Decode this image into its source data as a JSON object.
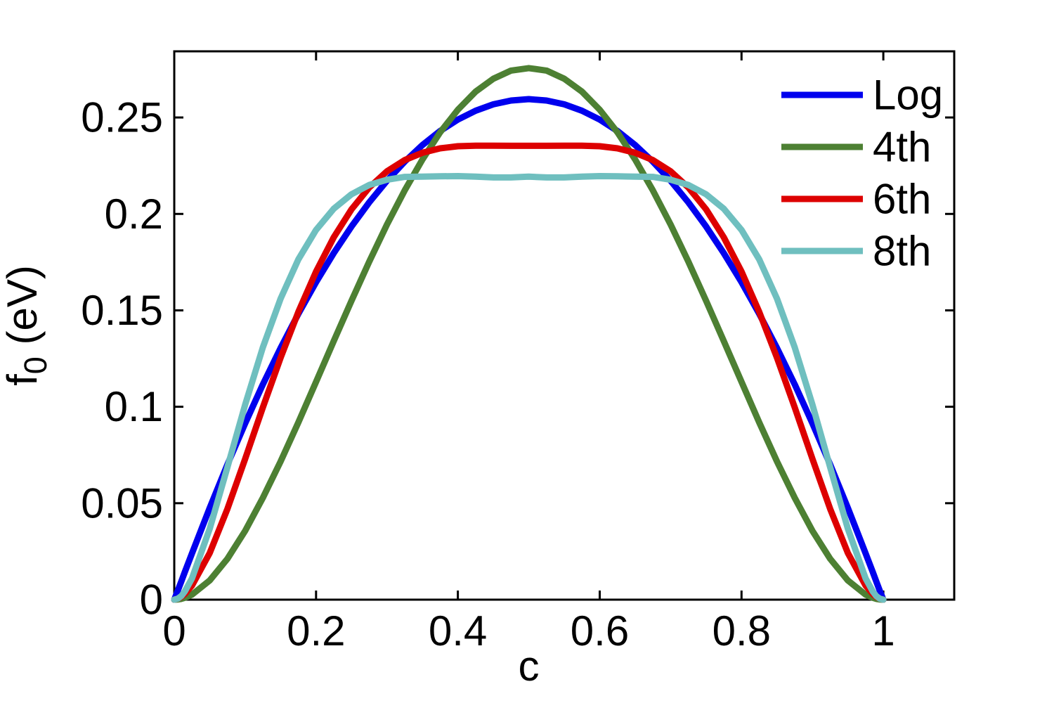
{
  "figure": {
    "background": "#ffffff",
    "axis_color": "#000000"
  },
  "chart_data": {
    "type": "line",
    "title": "",
    "xlabel": "c",
    "ylabel": {
      "main": "f",
      "sub": "0",
      "rest": " (eV)"
    },
    "xlim": [
      0,
      1.1
    ],
    "ylim": [
      0,
      0.2843
    ],
    "grid": false,
    "legend": {
      "position": "upper-right",
      "box": false
    },
    "xticks": [
      0,
      0.2,
      0.4,
      0.6,
      0.8,
      1
    ],
    "xtick_labels": [
      "0",
      "0.2",
      "0.4",
      "0.6",
      "0.8",
      "1"
    ],
    "yticks": [
      0,
      0.05,
      0.1,
      0.15,
      0.2,
      0.25
    ],
    "ytick_labels": [
      "0",
      "0.05",
      "0.1",
      "0.15",
      "0.2",
      "0.25"
    ],
    "x": [
      0,
      0.005,
      0.01,
      0.015,
      0.025,
      0.05,
      0.075,
      0.1,
      0.125,
      0.15,
      0.175,
      0.2,
      0.225,
      0.25,
      0.275,
      0.3,
      0.325,
      0.35,
      0.375,
      0.4,
      0.425,
      0.45,
      0.475,
      0.5,
      0.525,
      0.55,
      0.575,
      0.6,
      0.625,
      0.65,
      0.675,
      0.7,
      0.725,
      0.75,
      0.775,
      0.8,
      0.825,
      0.85,
      0.875,
      0.9,
      0.925,
      0.95,
      0.975,
      0.985,
      0.99,
      0.995,
      1
    ],
    "series": [
      {
        "name": "Log",
        "color": "#0000EE",
        "peak": 0.2595,
        "values": [
          0,
          0.0047,
          0.0095,
          0.0144,
          0.024,
          0.0476,
          0.0701,
          0.0914,
          0.1116,
          0.1305,
          0.1482,
          0.1646,
          0.1797,
          0.1935,
          0.206,
          0.2172,
          0.2271,
          0.2357,
          0.243,
          0.2489,
          0.2535,
          0.2568,
          0.2588,
          0.2595,
          0.2588,
          0.2568,
          0.2535,
          0.2489,
          0.243,
          0.2357,
          0.2271,
          0.2172,
          0.206,
          0.1935,
          0.1797,
          0.1646,
          0.1482,
          0.1305,
          0.1116,
          0.0914,
          0.0701,
          0.0476,
          0.024,
          0.0144,
          0.0095,
          0.0047,
          0
        ]
      },
      {
        "name": "4th",
        "color": "#4D8033",
        "peak": 0.2756,
        "values": [
          0,
          0.0001,
          0.0004,
          0.001,
          0.0026,
          0.01,
          0.0212,
          0.0357,
          0.0528,
          0.0717,
          0.0919,
          0.1129,
          0.1341,
          0.155,
          0.1753,
          0.1945,
          0.2122,
          0.2282,
          0.2423,
          0.254,
          0.2634,
          0.2701,
          0.2743,
          0.2756,
          0.2743,
          0.2701,
          0.2634,
          0.254,
          0.2423,
          0.2282,
          0.2122,
          0.1945,
          0.1753,
          0.155,
          0.1341,
          0.1129,
          0.0919,
          0.0717,
          0.0528,
          0.0357,
          0.0212,
          0.01,
          0.0026,
          0.001,
          0.0004,
          0.0001,
          0
        ]
      },
      {
        "name": "6th",
        "color": "#DD0000",
        "peak": 0.2353,
        "values": [
          0,
          0.0005,
          0.0015,
          0.003,
          0.0073,
          0.0242,
          0.0471,
          0.073,
          0.0997,
          0.1255,
          0.1492,
          0.1701,
          0.1879,
          0.2024,
          0.2137,
          0.2221,
          0.2279,
          0.2317,
          0.234,
          0.2351,
          0.2354,
          0.2354,
          0.2353,
          0.2353,
          0.2353,
          0.2354,
          0.2354,
          0.2351,
          0.234,
          0.2317,
          0.2279,
          0.2221,
          0.2137,
          0.2024,
          0.1879,
          0.1701,
          0.1492,
          0.1255,
          0.0997,
          0.073,
          0.0471,
          0.0242,
          0.0073,
          0.003,
          0.0015,
          0.0005,
          0
        ]
      },
      {
        "name": "8th",
        "color": "#6FBFBF",
        "peak": 0.2196,
        "values": [
          0,
          0.0005,
          0.0019,
          0.0043,
          0.011,
          0.0368,
          0.0687,
          0.1011,
          0.1308,
          0.1561,
          0.1764,
          0.1917,
          0.2027,
          0.2102,
          0.215,
          0.2177,
          0.2192,
          0.2193,
          0.2195,
          0.2196,
          0.2193,
          0.2189,
          0.2189,
          0.2193,
          0.2189,
          0.2189,
          0.2193,
          0.2196,
          0.2195,
          0.2193,
          0.2192,
          0.2177,
          0.215,
          0.2102,
          0.2027,
          0.1917,
          0.1764,
          0.1561,
          0.1308,
          0.1011,
          0.0687,
          0.0368,
          0.011,
          0.0043,
          0.0019,
          0.0005,
          0
        ]
      }
    ]
  }
}
